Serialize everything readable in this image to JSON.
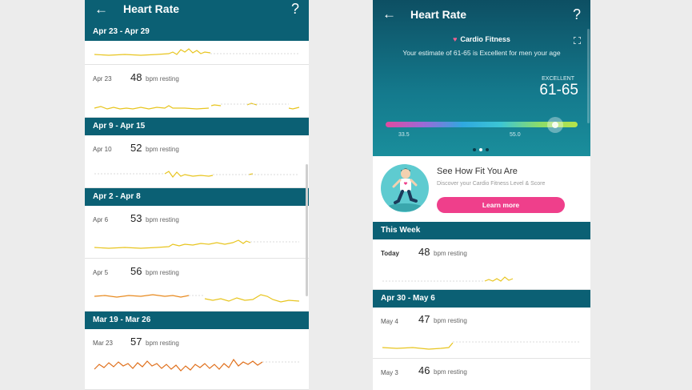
{
  "left": {
    "appbar": {
      "back_icon": "←",
      "title": "Heart Rate",
      "help_icon": "?"
    },
    "weeks": [
      {
        "header": "Apr 23 - Apr 29"
      },
      {
        "header": "Apr 9 - Apr 15"
      },
      {
        "header": "Apr 2 - Apr 8"
      },
      {
        "header": "Mar 19 - Mar 26"
      }
    ],
    "rows": [
      {
        "date": "Apr 23",
        "bpm": "48",
        "unit": "bpm resting"
      },
      {
        "date": "Apr 10",
        "bpm": "52",
        "unit": "bpm resting"
      },
      {
        "date": "Apr 6",
        "bpm": "53",
        "unit": "bpm resting"
      },
      {
        "date": "Apr 5",
        "bpm": "56",
        "unit": "bpm resting"
      },
      {
        "date": "Mar 23",
        "bpm": "57",
        "unit": "bpm resting"
      }
    ]
  },
  "right": {
    "appbar": {
      "back_icon": "←",
      "title": "Heart Rate",
      "help_icon": "?"
    },
    "cardio": {
      "title": "Cardio Fitness",
      "heart_icon": "♥",
      "description": "Your estimate of 61-65 is Excellent for men your age",
      "level_label": "EXCELLENT",
      "level_value": "61-65",
      "scale_min_label": "33.5",
      "scale_mid_label": "55.0"
    },
    "promo": {
      "title": "See How Fit You Are",
      "subtitle": "Discover your Cardio Fitness Level & Score",
      "button": "Learn more"
    },
    "sections": [
      {
        "header": "This Week"
      },
      {
        "header": "Apr 30 - May 6"
      }
    ],
    "rows": [
      {
        "date": "Today",
        "bpm": "48",
        "unit": "bpm resting"
      },
      {
        "date": "May 4",
        "bpm": "47",
        "unit": "bpm resting"
      },
      {
        "date": "May 3",
        "bpm": "46",
        "unit": "bpm resting"
      }
    ]
  },
  "colors": {
    "header": "#0b6074",
    "spark_yellow": "#e8c51f",
    "spark_orange": "#e88a1f",
    "learn_button": "#ef3f8b"
  }
}
